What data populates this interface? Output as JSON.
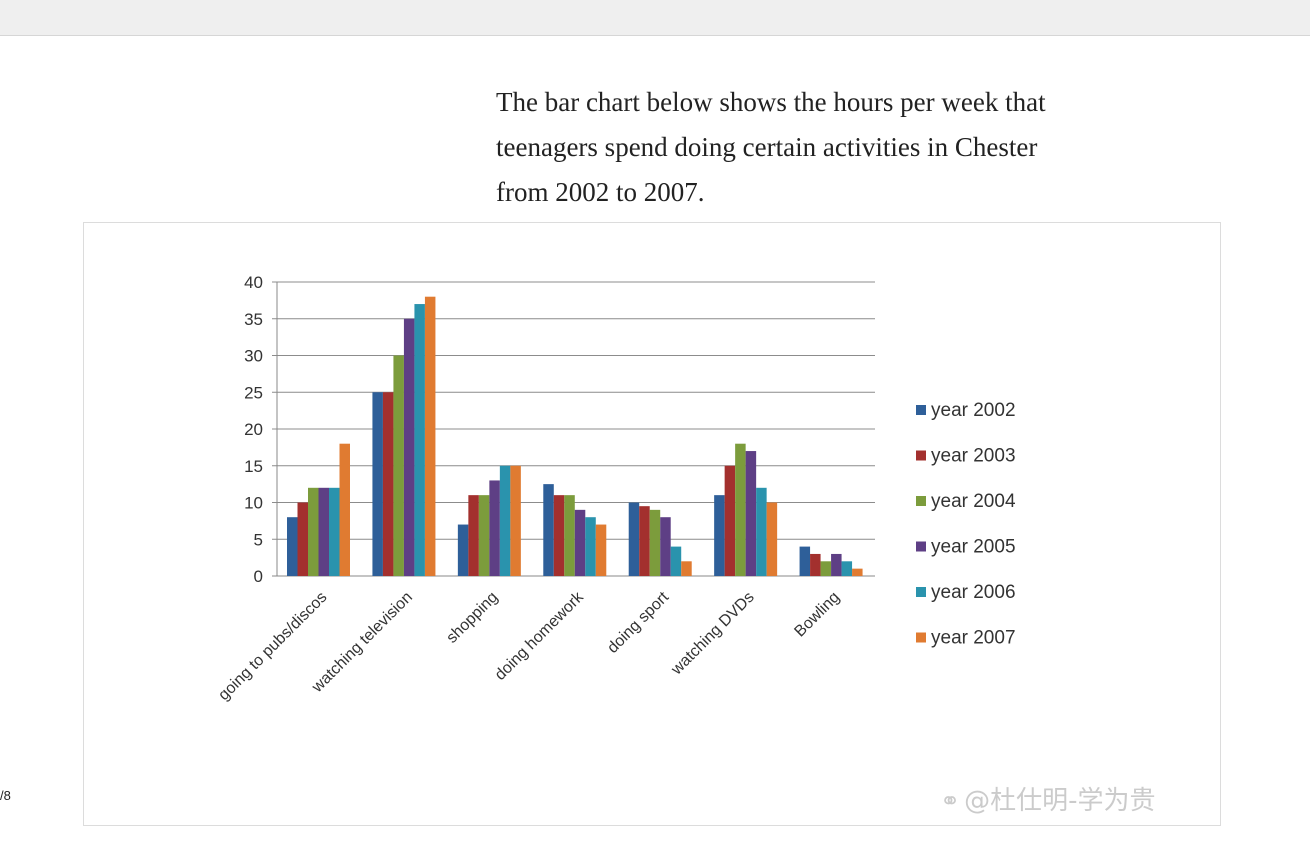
{
  "page_counter": "/8",
  "intro_lines": [
    "The bar chart below shows the hours per week that",
    "teenagers spend doing certain activities in Chester",
    "from 2002 to 2007."
  ],
  "watermark": "@杜仕明-学为贵",
  "chart_data": {
    "type": "bar",
    "title": "",
    "xlabel": "",
    "ylabel": "",
    "ylim": [
      0,
      40
    ],
    "yticks": [
      0,
      5,
      10,
      15,
      20,
      25,
      30,
      35,
      40
    ],
    "grid": true,
    "legend_position": "right",
    "categories": [
      "going to pubs/discos",
      "watching television",
      "shopping",
      "doing homework",
      "doing sport",
      "watching DVDs",
      "Bowling"
    ],
    "series": [
      {
        "name": "year 2002",
        "color": "#2e5f99",
        "values": [
          8,
          25,
          7,
          12.5,
          10,
          11,
          4
        ]
      },
      {
        "name": "year 2003",
        "color": "#a3302e",
        "values": [
          10,
          25,
          11,
          11,
          9.5,
          15,
          3
        ]
      },
      {
        "name": "year 2004",
        "color": "#7c9c3c",
        "values": [
          12,
          30,
          11,
          11,
          9,
          18,
          2
        ]
      },
      {
        "name": "year 2005",
        "color": "#5e3f85",
        "values": [
          12,
          35,
          13,
          9,
          8,
          17,
          3
        ]
      },
      {
        "name": "year 2006",
        "color": "#2a93ad",
        "values": [
          12,
          37,
          15,
          8,
          4,
          12,
          2
        ]
      },
      {
        "name": "year 2007",
        "color": "#e07b31",
        "values": [
          18,
          38,
          15,
          7,
          2,
          10,
          1
        ]
      }
    ]
  }
}
